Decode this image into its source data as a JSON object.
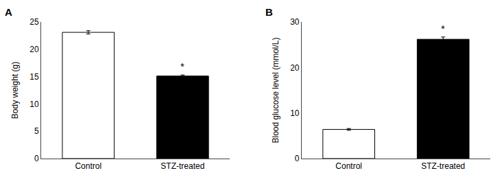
{
  "chart_data": [
    {
      "type": "bar",
      "title": "A",
      "categories": [
        "Control",
        "STZ-treated"
      ],
      "values": [
        23.1,
        15.1
      ],
      "errors": [
        0.3,
        0.2
      ],
      "colors": [
        "#ffffff",
        "#000000"
      ],
      "ylabel": "Body weight (g)",
      "ylim": [
        0,
        25
      ],
      "yticks": [
        0,
        5,
        10,
        15,
        20,
        25
      ],
      "grid": false,
      "annotations": [
        {
          "category": "STZ-treated",
          "text": "*"
        }
      ]
    },
    {
      "type": "bar",
      "title": "B",
      "categories": [
        "Control",
        "STZ-treated"
      ],
      "values": [
        6.4,
        26.2
      ],
      "errors": [
        0.2,
        0.5
      ],
      "colors": [
        "#ffffff",
        "#000000"
      ],
      "ylabel": "Blood glucose level (mmol/L)",
      "ylim": [
        0,
        30
      ],
      "yticks": [
        0,
        10,
        20,
        30
      ],
      "grid": false,
      "annotations": [
        {
          "category": "STZ-treated",
          "text": "*"
        }
      ]
    }
  ]
}
